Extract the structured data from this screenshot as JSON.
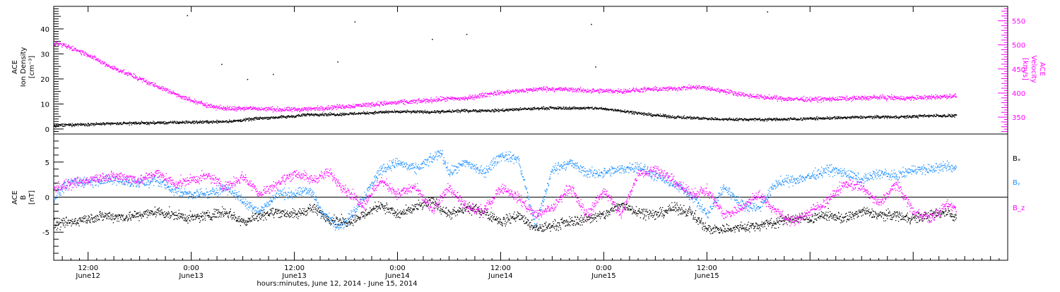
{
  "colors": {
    "black": "#000000",
    "magenta": "#ff00ff",
    "blue": "#1e90ff"
  },
  "chart_data": [
    {
      "type": "scatter",
      "panel": "top",
      "ylabel_left": [
        "ACE",
        "Ion Density",
        "[cm⁻³]"
      ],
      "ylabel_right": [
        "ACE",
        "Velocity",
        "[km/s]"
      ],
      "left_axis": {
        "ylim": [
          -2,
          49
        ],
        "ticks": [
          0,
          10,
          20,
          30,
          40
        ]
      },
      "right_axis": {
        "ylim": [
          315,
          580
        ],
        "ticks": [
          350,
          400,
          450,
          500,
          550
        ]
      },
      "series": [
        {
          "name": "",
          "axis": "left",
          "color": "black",
          "points": [
            [
              0,
              1.5
            ],
            [
              3,
              2.0
            ],
            [
              6,
              2.2
            ],
            [
              9,
              2.5
            ],
            [
              12,
              2.6
            ],
            [
              15,
              2.8
            ],
            [
              18,
              3.0
            ],
            [
              21,
              3.3
            ],
            [
              24,
              4.5
            ],
            [
              27,
              5.0
            ],
            [
              30,
              6.0
            ],
            [
              33,
              6.0
            ],
            [
              36,
              6.5
            ],
            [
              39,
              7.0
            ],
            [
              42,
              7.0
            ],
            [
              45,
              7.0
            ],
            [
              48,
              7.5
            ],
            [
              51,
              7.5
            ],
            [
              54,
              8.0
            ],
            [
              57,
              8.5
            ],
            [
              60,
              8.5
            ],
            [
              63,
              8.5
            ],
            [
              66,
              7.5
            ],
            [
              69,
              6.0
            ],
            [
              72,
              5.0
            ],
            [
              75,
              4.5
            ],
            [
              78,
              4.0
            ],
            [
              81,
              4.0
            ],
            [
              84,
              4.0
            ],
            [
              87,
              4.2
            ],
            [
              90,
              4.5
            ],
            [
              93,
              4.8
            ],
            [
              96,
              5.0
            ],
            [
              99,
              5.0
            ],
            [
              102,
              5.5
            ],
            [
              105,
              5.5
            ]
          ],
          "outliers": [
            [
              15.5,
              45.5
            ],
            [
              19.5,
              26
            ],
            [
              22.5,
              20
            ],
            [
              25.5,
              22
            ],
            [
              33,
              27
            ],
            [
              35,
              43
            ],
            [
              44,
              36
            ],
            [
              48,
              38
            ],
            [
              62.5,
              42
            ],
            [
              63,
              25
            ],
            [
              83,
              47
            ]
          ]
        },
        {
          "name": "",
          "axis": "right",
          "color": "magenta",
          "points": [
            [
              0,
              505
            ],
            [
              2,
              495
            ],
            [
              4,
              480
            ],
            [
              6,
              460
            ],
            [
              8,
              445
            ],
            [
              10,
              430
            ],
            [
              12,
              415
            ],
            [
              14,
              400
            ],
            [
              16,
              385
            ],
            [
              18,
              375
            ],
            [
              20,
              368
            ],
            [
              22,
              370
            ],
            [
              24,
              368
            ],
            [
              27,
              366
            ],
            [
              30,
              368
            ],
            [
              33,
              372
            ],
            [
              36,
              376
            ],
            [
              39,
              380
            ],
            [
              42,
              383
            ],
            [
              45,
              388
            ],
            [
              48,
              390
            ],
            [
              51,
              400
            ],
            [
              54,
              405
            ],
            [
              57,
              410
            ],
            [
              60,
              408
            ],
            [
              63,
              405
            ],
            [
              66,
              405
            ],
            [
              69,
              408
            ],
            [
              72,
              410
            ],
            [
              75,
              413
            ],
            [
              78,
              405
            ],
            [
              81,
              395
            ],
            [
              84,
              390
            ],
            [
              87,
              388
            ],
            [
              90,
              388
            ],
            [
              93,
              390
            ],
            [
              96,
              392
            ],
            [
              99,
              390
            ],
            [
              102,
              392
            ],
            [
              105,
              395
            ]
          ]
        }
      ]
    },
    {
      "type": "scatter",
      "panel": "bottom",
      "ylabel": [
        "ACE",
        "B",
        "[nT]"
      ],
      "ylim": [
        -9,
        9
      ],
      "yticks": [
        -5,
        0,
        5
      ],
      "legend": [
        "Bₓ",
        "Bᵧ",
        "B_z"
      ],
      "legend_placement": "right",
      "series": [
        {
          "name": "Bₓ",
          "color": "black",
          "points": [
            [
              0,
              -4.0
            ],
            [
              2,
              -3.5
            ],
            [
              4,
              -3.0
            ],
            [
              6,
              -2.6
            ],
            [
              8,
              -2.8
            ],
            [
              10,
              -2.5
            ],
            [
              12,
              -2.0
            ],
            [
              14,
              -2.5
            ],
            [
              16,
              -3.0
            ],
            [
              18,
              -2.5
            ],
            [
              20,
              -2.0
            ],
            [
              22,
              -3.5
            ],
            [
              24,
              -2.5
            ],
            [
              26,
              -2.0
            ],
            [
              28,
              -2.5
            ],
            [
              30,
              -1.5
            ],
            [
              32,
              -3.0
            ],
            [
              34,
              -3.5
            ],
            [
              36,
              -2.5
            ],
            [
              38,
              -1.0
            ],
            [
              40,
              -2.5
            ],
            [
              42,
              -1.5
            ],
            [
              44,
              -0.5
            ],
            [
              46,
              -2.5
            ],
            [
              48,
              -1.5
            ],
            [
              50,
              -2.0
            ],
            [
              52,
              -3.5
            ],
            [
              54,
              -2.5
            ],
            [
              56,
              -4.5
            ],
            [
              58,
              -4.0
            ],
            [
              60,
              -3.5
            ],
            [
              62,
              -3.0
            ],
            [
              64,
              -2.5
            ],
            [
              66,
              -1.0
            ],
            [
              68,
              -2.0
            ],
            [
              70,
              -2.5
            ],
            [
              72,
              -1.5
            ],
            [
              74,
              -2.0
            ],
            [
              76,
              -4.5
            ],
            [
              78,
              -4.5
            ],
            [
              80,
              -4.3
            ],
            [
              82,
              -4.0
            ],
            [
              84,
              -3.5
            ],
            [
              86,
              -3.0
            ],
            [
              88,
              -3.0
            ],
            [
              90,
              -2.5
            ],
            [
              92,
              -3.0
            ],
            [
              94,
              -2.0
            ],
            [
              96,
              -2.5
            ],
            [
              98,
              -2.5
            ],
            [
              100,
              -3.0
            ],
            [
              102,
              -2.5
            ],
            [
              104,
              -2.0
            ],
            [
              105,
              -3.0
            ]
          ]
        },
        {
          "name": "Bᵧ",
          "color": "blue",
          "points": [
            [
              0,
              0
            ],
            [
              1.5,
              2.0
            ],
            [
              4,
              2.3
            ],
            [
              7,
              2.5
            ],
            [
              10,
              2.0
            ],
            [
              12,
              2.5
            ],
            [
              14,
              1.0
            ],
            [
              16,
              0.5
            ],
            [
              18,
              0.5
            ],
            [
              20,
              1.5
            ],
            [
              22,
              -0.5
            ],
            [
              24,
              -2.0
            ],
            [
              26,
              0.5
            ],
            [
              28,
              0.5
            ],
            [
              30,
              1.0
            ],
            [
              31,
              -2.0
            ],
            [
              33,
              -4.0
            ],
            [
              34,
              -3.5
            ],
            [
              36,
              0
            ],
            [
              38,
              4.0
            ],
            [
              40,
              5.0
            ],
            [
              42,
              4.0
            ],
            [
              44,
              5.5
            ],
            [
              45,
              6.5
            ],
            [
              46,
              3.5
            ],
            [
              48,
              5.0
            ],
            [
              50,
              3.5
            ],
            [
              52,
              6.0
            ],
            [
              54,
              5.5
            ],
            [
              56,
              -4.0
            ],
            [
              58,
              4.0
            ],
            [
              60,
              5.0
            ],
            [
              62,
              3.5
            ],
            [
              64,
              3.5
            ],
            [
              66,
              4.0
            ],
            [
              68,
              4.5
            ],
            [
              70,
              3.0
            ],
            [
              72,
              2.0
            ],
            [
              74,
              0.5
            ],
            [
              76,
              -2.5
            ],
            [
              78,
              1.5
            ],
            [
              80,
              -1.0
            ],
            [
              82,
              -1.5
            ],
            [
              84,
              2.0
            ],
            [
              86,
              2.5
            ],
            [
              88,
              3.0
            ],
            [
              90,
              4.0
            ],
            [
              92,
              3.5
            ],
            [
              94,
              2.5
            ],
            [
              96,
              3.5
            ],
            [
              98,
              3.0
            ],
            [
              100,
              4.0
            ],
            [
              102,
              4.0
            ],
            [
              104,
              4.5
            ],
            [
              105,
              4.0
            ]
          ]
        },
        {
          "name": "B_z",
          "color": "magenta",
          "points": [
            [
              0,
              1.5
            ],
            [
              2,
              1.8
            ],
            [
              4,
              2.5
            ],
            [
              6,
              3.0
            ],
            [
              8,
              3.0
            ],
            [
              10,
              2.5
            ],
            [
              12,
              3.5
            ],
            [
              14,
              2.0
            ],
            [
              16,
              2.5
            ],
            [
              18,
              3.0
            ],
            [
              20,
              1.5
            ],
            [
              22,
              3.0
            ],
            [
              24,
              0.5
            ],
            [
              26,
              2.0
            ],
            [
              28,
              3.5
            ],
            [
              30,
              2.5
            ],
            [
              32,
              3.5
            ],
            [
              34,
              1.0
            ],
            [
              36,
              -1.0
            ],
            [
              38,
              2.5
            ],
            [
              40,
              0.5
            ],
            [
              42,
              1.5
            ],
            [
              44,
              -2.0
            ],
            [
              46,
              1.5
            ],
            [
              48,
              -1.5
            ],
            [
              50,
              -2.0
            ],
            [
              52,
              1.5
            ],
            [
              54,
              0
            ],
            [
              56,
              -2.5
            ],
            [
              58,
              -1.5
            ],
            [
              60,
              1.5
            ],
            [
              62,
              -2.5
            ],
            [
              64,
              1.0
            ],
            [
              66,
              -2.5
            ],
            [
              68,
              3.5
            ],
            [
              70,
              4.0
            ],
            [
              72,
              2.5
            ],
            [
              74,
              0.5
            ],
            [
              76,
              1.0
            ],
            [
              78,
              -2.5
            ],
            [
              80,
              -1.5
            ],
            [
              82,
              0.5
            ],
            [
              84,
              -2.0
            ],
            [
              86,
              -3.5
            ],
            [
              88,
              -2.0
            ],
            [
              90,
              -0.5
            ],
            [
              92,
              2.0
            ],
            [
              94,
              1.5
            ],
            [
              96,
              -1.0
            ],
            [
              98,
              2.0
            ],
            [
              100,
              -2.0
            ],
            [
              102,
              -3.0
            ],
            [
              104,
              -1.0
            ],
            [
              105,
              -1.5
            ]
          ]
        }
      ]
    }
  ],
  "x_axis": {
    "xlim_hours_from_0000_june12": [
      8,
      119
    ],
    "data_start_hour": 8,
    "ticks": [
      {
        "hour": 12,
        "time": "12:00",
        "date": "June12"
      },
      {
        "hour": 24,
        "time": "0:00",
        "date": "June13"
      },
      {
        "hour": 36,
        "time": "12:00",
        "date": "June13"
      },
      {
        "hour": 48,
        "time": "0:00",
        "date": "June14"
      },
      {
        "hour": 60,
        "time": "12:00",
        "date": "June14"
      },
      {
        "hour": 72,
        "time": "0:00",
        "date": "June15"
      },
      {
        "hour": 84,
        "time": "12:00",
        "date": "June15"
      }
    ],
    "xlabel": "hours:minutes, June 12, 2014 - June 15, 2014"
  }
}
